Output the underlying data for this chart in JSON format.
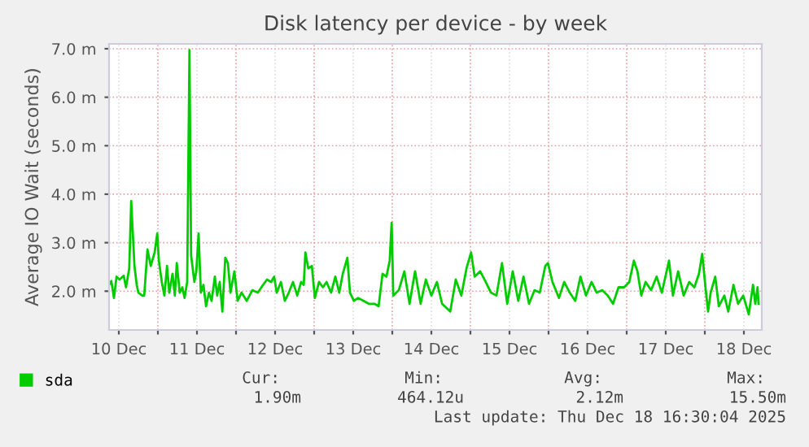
{
  "chart_data": {
    "type": "line",
    "title": "Disk latency per device - by week",
    "ylabel": "Average IO Wait (seconds)",
    "x": [
      "2025-12-10T09:00",
      "2025-12-10T09:42",
      "2025-12-10T10:30",
      "2025-12-10T11:18",
      "2025-12-10T12:12",
      "2025-12-10T13:30",
      "2025-12-10T14:12",
      "2025-12-10T15:12",
      "2025-12-10T15:48",
      "2025-12-10T16:48",
      "2025-12-10T17:30",
      "2025-12-10T18:00",
      "2025-12-10T19:12",
      "2025-12-10T19:48",
      "2025-12-10T20:48",
      "2025-12-10T21:48",
      "2025-12-10T23:00",
      "2025-12-10T23:48",
      "2025-12-11T00:18",
      "2025-12-11T01:12",
      "2025-12-11T02:00",
      "2025-12-11T02:48",
      "2025-12-11T03:30",
      "2025-12-11T04:30",
      "2025-12-11T05:12",
      "2025-12-11T05:48",
      "2025-12-11T06:42",
      "2025-12-11T07:30",
      "2025-12-11T08:12",
      "2025-12-11T09:00",
      "2025-12-11T09:42",
      "2025-12-11T10:12",
      "2025-12-11T11:12",
      "2025-12-11T11:48",
      "2025-12-11T12:30",
      "2025-12-11T13:12",
      "2025-12-11T14:00",
      "2025-12-11T14:48",
      "2025-12-11T15:42",
      "2025-12-11T16:30",
      "2025-12-11T17:30",
      "2025-12-11T18:12",
      "2025-12-11T19:00",
      "2025-12-11T19:48",
      "2025-12-11T20:42",
      "2025-12-11T21:30",
      "2025-12-11T22:18",
      "2025-12-11T23:30",
      "2025-12-12T00:30",
      "2025-12-12T01:42",
      "2025-12-12T03:18",
      "2025-12-12T05:00",
      "2025-12-12T06:42",
      "2025-12-12T08:18",
      "2025-12-12T09:30",
      "2025-12-12T10:48",
      "2025-12-12T11:42",
      "2025-12-12T12:30",
      "2025-12-12T13:48",
      "2025-12-12T15:00",
      "2025-12-12T16:12",
      "2025-12-12T17:30",
      "2025-12-12T18:48",
      "2025-12-12T20:00",
      "2025-12-12T20:48",
      "2025-12-12T21:18",
      "2025-12-12T22:12",
      "2025-12-12T23:18",
      "2025-12-13T00:12",
      "2025-12-13T01:30",
      "2025-12-13T02:42",
      "2025-12-13T03:48",
      "2025-12-13T05:12",
      "2025-12-13T06:30",
      "2025-12-13T07:42",
      "2025-12-13T08:48",
      "2025-12-13T10:12",
      "2025-12-13T11:00",
      "2025-12-13T12:12",
      "2025-12-13T13:30",
      "2025-12-13T15:12",
      "2025-12-13T16:48",
      "2025-12-13T18:30",
      "2025-12-13T19:48",
      "2025-12-13T21:00",
      "2025-12-13T22:12",
      "2025-12-13T23:12",
      "2025-12-13T23:48",
      "2025-12-14T00:18",
      "2025-12-14T02:00",
      "2025-12-14T03:42",
      "2025-12-14T05:18",
      "2025-12-14T07:00",
      "2025-12-14T08:42",
      "2025-12-14T10:18",
      "2025-12-14T12:00",
      "2025-12-14T13:42",
      "2025-12-14T15:18",
      "2025-12-14T17:48",
      "2025-12-14T19:30",
      "2025-12-14T21:12",
      "2025-12-14T22:48",
      "2025-12-15T00:12",
      "2025-12-15T01:18",
      "2025-12-15T03:00",
      "2025-12-15T04:42",
      "2025-12-15T06:18",
      "2025-12-15T08:00",
      "2025-12-15T09:42",
      "2025-12-15T11:18",
      "2025-12-15T13:00",
      "2025-12-15T14:42",
      "2025-12-15T16:18",
      "2025-12-15T18:00",
      "2025-12-15T19:42",
      "2025-12-15T21:18",
      "2025-12-15T23:00",
      "2025-12-15T23:48",
      "2025-12-16T01:12",
      "2025-12-16T03:12",
      "2025-12-16T04:48",
      "2025-12-16T06:30",
      "2025-12-16T08:12",
      "2025-12-16T09:48",
      "2025-12-16T11:30",
      "2025-12-16T13:12",
      "2025-12-16T14:48",
      "2025-12-16T16:30",
      "2025-12-16T18:12",
      "2025-12-16T19:48",
      "2025-12-16T21:30",
      "2025-12-16T23:12",
      "2025-12-17T00:48",
      "2025-12-17T02:12",
      "2025-12-17T03:18",
      "2025-12-17T04:30",
      "2025-12-17T05:48",
      "2025-12-17T07:30",
      "2025-12-17T09:12",
      "2025-12-17T10:48",
      "2025-12-17T13:00",
      "2025-12-17T14:12",
      "2025-12-17T15:48",
      "2025-12-17T17:30",
      "2025-12-17T19:12",
      "2025-12-17T20:48",
      "2025-12-17T22:12",
      "2025-12-17T23:12",
      "2025-12-18T00:12",
      "2025-12-18T01:00",
      "2025-12-18T01:48",
      "2025-12-18T03:12",
      "2025-12-18T04:18",
      "2025-12-18T06:00",
      "2025-12-18T07:12",
      "2025-12-18T08:48",
      "2025-12-18T10:12",
      "2025-12-18T11:48",
      "2025-12-18T13:30",
      "2025-12-18T14:48",
      "2025-12-18T15:30",
      "2025-12-18T16:12",
      "2025-12-18T16:30"
    ],
    "series": [
      {
        "name": "sda",
        "color": "#00cc00",
        "values": [
          2.13,
          2.21,
          1.86,
          2.3,
          2.24,
          2.32,
          2.08,
          2.47,
          3.86,
          2.52,
          2.13,
          1.97,
          1.91,
          1.91,
          2.86,
          2.52,
          2.8,
          3.19,
          2.63,
          2.19,
          1.91,
          2.52,
          1.97,
          2.36,
          1.91,
          2.58,
          1.97,
          2.08,
          1.86,
          2.19,
          6.97,
          2.74,
          2.19,
          2.41,
          3.19,
          1.97,
          2.13,
          1.69,
          1.97,
          1.8,
          2.3,
          1.91,
          2.19,
          1.58,
          2.69,
          2.58,
          1.97,
          2.41,
          1.8,
          1.97,
          1.8,
          2.02,
          1.97,
          2.13,
          2.24,
          2.19,
          2.3,
          1.97,
          2.19,
          1.8,
          1.97,
          2.19,
          1.91,
          2.19,
          2.13,
          2.8,
          2.47,
          2.52,
          1.86,
          2.19,
          2.08,
          2.19,
          1.97,
          2.3,
          1.97,
          2.36,
          2.69,
          1.97,
          1.8,
          1.86,
          1.8,
          1.74,
          1.74,
          1.69,
          2.36,
          2.3,
          2.63,
          3.41,
          1.91,
          2.02,
          2.41,
          1.74,
          2.41,
          1.74,
          2.24,
          1.91,
          2.19,
          1.74,
          1.58,
          2.24,
          1.91,
          2.47,
          2.8,
          2.3,
          2.41,
          2.19,
          1.97,
          1.91,
          2.58,
          1.74,
          2.41,
          1.8,
          2.3,
          1.74,
          2.02,
          1.97,
          2.52,
          2.58,
          2.19,
          1.86,
          2.19,
          1.97,
          1.8,
          2.3,
          1.91,
          2.19,
          1.97,
          2.02,
          1.91,
          1.74,
          2.08,
          2.08,
          2.19,
          2.63,
          2.41,
          1.91,
          2.19,
          2.02,
          2.3,
          1.97,
          2.63,
          1.91,
          2.41,
          1.91,
          2.19,
          2.08,
          2.36,
          2.77,
          2.08,
          1.58,
          1.97,
          2.3,
          1.69,
          1.91,
          1.58,
          2.13,
          1.74,
          1.91,
          1.52,
          2.13,
          1.74,
          2.08,
          1.74
        ]
      }
    ],
    "xlim": [
      "2025-12-10T09:00",
      "2025-12-18T17:30"
    ],
    "ylim": [
      1.2,
      7.1
    ],
    "xticks": [
      {
        "value": "2025-12-10T12:00",
        "label": "10 Dec"
      },
      {
        "value": "2025-12-11",
        "label": null
      },
      {
        "value": "2025-12-11T12:00",
        "label": "11 Dec"
      },
      {
        "value": "2025-12-12",
        "label": null
      },
      {
        "value": "2025-12-12T12:00",
        "label": "12 Dec"
      },
      {
        "value": "2025-12-13",
        "label": null
      },
      {
        "value": "2025-12-13T12:00",
        "label": "13 Dec"
      },
      {
        "value": "2025-12-14",
        "label": null
      },
      {
        "value": "2025-12-14T12:00",
        "label": "14 Dec"
      },
      {
        "value": "2025-12-15",
        "label": null
      },
      {
        "value": "2025-12-15T12:00",
        "label": "15 Dec"
      },
      {
        "value": "2025-12-16",
        "label": null
      },
      {
        "value": "2025-12-16T12:00",
        "label": "16 Dec"
      },
      {
        "value": "2025-12-17",
        "label": null
      },
      {
        "value": "2025-12-17T12:00",
        "label": "17 Dec"
      },
      {
        "value": "2025-12-18",
        "label": null
      },
      {
        "value": "2025-12-18T12:00",
        "label": "18 Dec"
      }
    ],
    "yticks": [
      {
        "value": 2,
        "label": "2.0 m"
      },
      {
        "value": 3,
        "label": "3.0 m"
      },
      {
        "value": 4,
        "label": "4.0 m"
      },
      {
        "value": 5,
        "label": "5.0 m"
      },
      {
        "value": 6,
        "label": "6.0 m"
      },
      {
        "value": 7,
        "label": "7.0 m"
      }
    ],
    "grid": true,
    "legend": "bottom left",
    "annotations": [
      "Cur:",
      "1.90m",
      "Min:",
      "464.12u",
      "Avg:",
      "2.12m",
      "Max:",
      "15.50m",
      "Last update: Thu Dec 18 16:30:04 2025"
    ]
  }
}
